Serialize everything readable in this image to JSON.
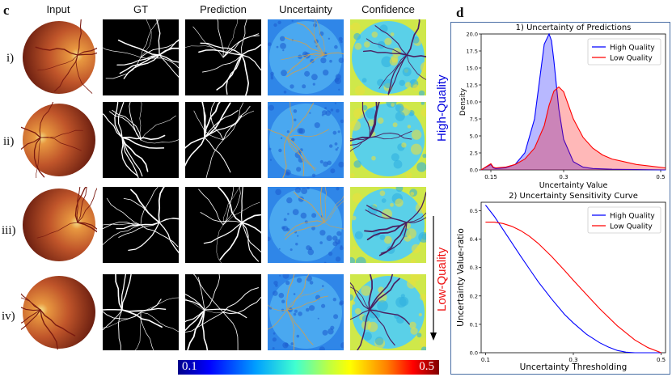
{
  "panel_c": {
    "letter": "c",
    "columns": [
      "Input",
      "GT",
      "Prediction",
      "Uncertainty",
      "Confidence"
    ],
    "rows": [
      "i)",
      "ii)",
      "iii)",
      "iv)"
    ],
    "group_labels": {
      "high": "High-Quality",
      "low": "Low-Quality"
    },
    "colorbar": {
      "min": "0.1",
      "max": "0.5"
    },
    "colors": {
      "high": "#0000dd",
      "low": "#ee1111"
    }
  },
  "panel_d": {
    "letter": "d"
  },
  "chart_data": [
    {
      "type": "area",
      "title": "1) Uncertainty of Predictions",
      "xlabel": "Uncertainty Value",
      "ylabel": "Density",
      "xlim": [
        0.13,
        0.51
      ],
      "ylim": [
        0,
        20
      ],
      "xticks": [
        "0.15",
        "0.3",
        "0.5"
      ],
      "xtick_values": [
        0.15,
        0.3,
        0.5
      ],
      "yticks": [
        "0.0",
        "2.5",
        "5.0",
        "7.5",
        "10.0",
        "12.5",
        "15.0",
        "17.5",
        "20.0"
      ],
      "ytick_values": [
        0,
        2.5,
        5,
        7.5,
        10,
        12.5,
        15,
        17.5,
        20
      ],
      "legend": "top-right",
      "series": [
        {
          "name": "High Quality",
          "color": "#0000ff",
          "x": [
            0.13,
            0.15,
            0.155,
            0.16,
            0.18,
            0.2,
            0.22,
            0.24,
            0.25,
            0.26,
            0.27,
            0.275,
            0.28,
            0.29,
            0.3,
            0.32,
            0.34,
            0.36,
            0.4,
            0.45,
            0.51
          ],
          "y": [
            0,
            0.8,
            0.3,
            0.2,
            0.3,
            0.8,
            2.5,
            7.5,
            13,
            18.5,
            20,
            19,
            16,
            9,
            4.5,
            1.2,
            0.4,
            0.2,
            0.1,
            0.05,
            0
          ]
        },
        {
          "name": "Low Quality",
          "color": "#ff0000",
          "x": [
            0.13,
            0.15,
            0.155,
            0.16,
            0.18,
            0.2,
            0.22,
            0.24,
            0.26,
            0.27,
            0.28,
            0.29,
            0.3,
            0.31,
            0.32,
            0.34,
            0.36,
            0.38,
            0.4,
            0.45,
            0.51
          ],
          "y": [
            0,
            0.9,
            0.4,
            0.3,
            0.4,
            0.8,
            1.6,
            3.2,
            6.5,
            9.5,
            11.6,
            12.2,
            11.5,
            9.5,
            7.5,
            4.8,
            3.2,
            2.2,
            1.6,
            0.8,
            0.3
          ]
        }
      ]
    },
    {
      "type": "line",
      "title": "2) Uncertainty Sensitivity Curve",
      "xlabel": "Uncertainty Thresholding",
      "ylabel": "Uncertainty Value-ratio",
      "xlim": [
        0.09,
        0.51
      ],
      "ylim": [
        0,
        0.53
      ],
      "xticks": [
        "0.1",
        "0.3",
        "0.5"
      ],
      "xtick_values": [
        0.1,
        0.3,
        0.5
      ],
      "yticks": [
        "0.0",
        "0.1",
        "0.2",
        "0.3",
        "0.4",
        "0.5"
      ],
      "ytick_values": [
        0,
        0.1,
        0.2,
        0.3,
        0.4,
        0.5
      ],
      "legend": "top-right",
      "series": [
        {
          "name": "High Quality",
          "color": "#0000ff",
          "x": [
            0.1,
            0.12,
            0.15,
            0.18,
            0.2,
            0.22,
            0.25,
            0.28,
            0.3,
            0.33,
            0.36,
            0.38,
            0.4,
            0.42,
            0.44,
            0.45,
            0.5
          ],
          "y": [
            0.52,
            0.48,
            0.41,
            0.34,
            0.295,
            0.25,
            0.19,
            0.135,
            0.105,
            0.065,
            0.035,
            0.02,
            0.008,
            0.002,
            0,
            0,
            0
          ]
        },
        {
          "name": "Low Quality",
          "color": "#ff0000",
          "x": [
            0.1,
            0.12,
            0.14,
            0.16,
            0.18,
            0.2,
            0.22,
            0.25,
            0.28,
            0.3,
            0.33,
            0.36,
            0.4,
            0.44,
            0.47,
            0.5
          ],
          "y": [
            0.46,
            0.46,
            0.455,
            0.445,
            0.43,
            0.41,
            0.385,
            0.34,
            0.29,
            0.255,
            0.205,
            0.155,
            0.095,
            0.045,
            0.018,
            0
          ]
        }
      ]
    }
  ]
}
